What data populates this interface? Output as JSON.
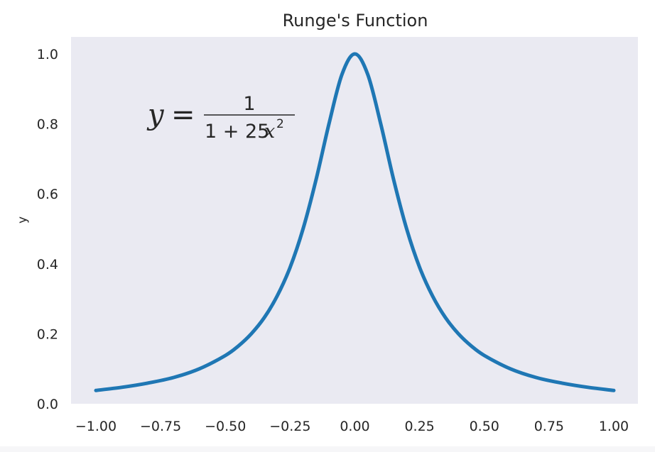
{
  "chart_data": {
    "type": "line",
    "title": "Runge's Function",
    "xlabel": "",
    "ylabel": "y",
    "xlim": [
      -1.0,
      1.0
    ],
    "ylim": [
      0.0,
      1.0
    ],
    "grid": false,
    "x_ticks": [
      "−1.00",
      "−0.75",
      "−0.50",
      "−0.25",
      "0.00",
      "0.25",
      "0.50",
      "0.75",
      "1.00"
    ],
    "x_tick_values": [
      -1.0,
      -0.75,
      -0.5,
      -0.25,
      0.0,
      0.25,
      0.5,
      0.75,
      1.0
    ],
    "y_ticks": [
      "0.0",
      "0.2",
      "0.4",
      "0.6",
      "0.8",
      "1.0"
    ],
    "y_tick_values": [
      0.0,
      0.2,
      0.4,
      0.6,
      0.8,
      1.0
    ],
    "series": [
      {
        "color": "#1f77b4",
        "x": [
          -1.0,
          -0.9,
          -0.8,
          -0.7,
          -0.6,
          -0.5,
          -0.45,
          -0.4,
          -0.35,
          -0.3,
          -0.25,
          -0.2,
          -0.15,
          -0.1,
          -0.05,
          0.0,
          0.05,
          0.1,
          0.15,
          0.2,
          0.25,
          0.3,
          0.35,
          0.4,
          0.45,
          0.5,
          0.6,
          0.7,
          0.8,
          0.9,
          1.0
        ],
        "y": [
          0.038,
          0.047,
          0.059,
          0.075,
          0.1,
          0.138,
          0.165,
          0.2,
          0.246,
          0.308,
          0.39,
          0.5,
          0.64,
          0.8,
          0.941,
          1.0,
          0.941,
          0.8,
          0.64,
          0.5,
          0.39,
          0.308,
          0.246,
          0.2,
          0.165,
          0.138,
          0.1,
          0.075,
          0.059,
          0.047,
          0.038
        ]
      }
    ],
    "annotation": {
      "lhs_var": "y",
      "equals": "=",
      "numerator": "1",
      "denominator_prefix": "1 + 25",
      "denominator_var": "x",
      "exponent": "2"
    }
  },
  "colors": {
    "plot_background": "#eaeaf2",
    "line": "#1f77b4",
    "text": "#262626"
  }
}
